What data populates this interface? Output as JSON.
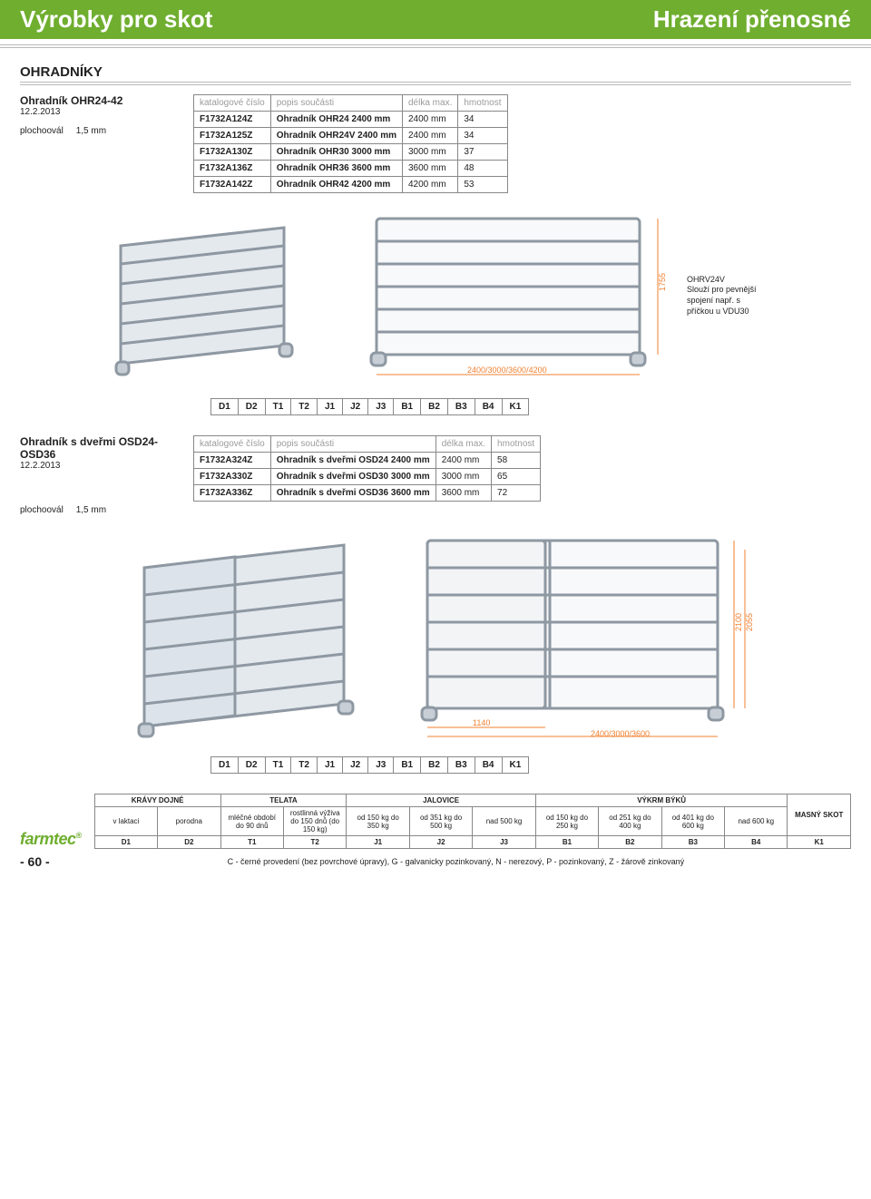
{
  "header": {
    "left": "Výrobky pro skot",
    "right": "Hrazení přenosné"
  },
  "section1": {
    "title": "OHRADNÍKY",
    "prodName": "Ohradník OHR24-42",
    "date": "12.2.2013",
    "spec": "plochoovál     1,5 mm",
    "tableHead": [
      "katalogové číslo",
      "popis součásti",
      "délka max.",
      "hmotnost"
    ],
    "rows": [
      {
        "c": "F1732A124Z",
        "p": "Ohradník OHR24 2400 mm",
        "d": "2400 mm",
        "h": "34"
      },
      {
        "c": "F1732A125Z",
        "p": "Ohradník OHR24V 2400 mm",
        "d": "2400 mm",
        "h": "34"
      },
      {
        "c": "F1732A130Z",
        "p": "Ohradník OHR30 3000 mm",
        "d": "3000 mm",
        "h": "37"
      },
      {
        "c": "F1732A136Z",
        "p": "Ohradník OHR36 3600 mm",
        "d": "3600 mm",
        "h": "48"
      },
      {
        "c": "F1732A142Z",
        "p": "Ohradník OHR42 4200 mm",
        "d": "4200 mm",
        "h": "53"
      }
    ],
    "note": "OHRV24V\nSlouží pro pevnější spojení např. s příčkou u VDU30",
    "fig1": {
      "height": "1755",
      "width": "2400/3000/3600/4200"
    },
    "codes": [
      "D1",
      "D2",
      "T1",
      "T2",
      "J1",
      "J2",
      "J3",
      "B1",
      "B2",
      "B3",
      "B4",
      "K1"
    ]
  },
  "section2": {
    "prodName": "Ohradník s dveřmi OSD24-OSD36",
    "date": "12.2.2013",
    "spec": "plochoovál     1,5 mm",
    "tableHead": [
      "katalogové číslo",
      "popis součásti",
      "délka max.",
      "hmotnost"
    ],
    "rows": [
      {
        "c": "F1732A324Z",
        "p": "Ohradník s dveřmi OSD24 2400 mm",
        "d": "2400 mm",
        "h": "58"
      },
      {
        "c": "F1732A330Z",
        "p": "Ohradník s dveřmi OSD30 3000 mm",
        "d": "3000 mm",
        "h": "65"
      },
      {
        "c": "F1732A336Z",
        "p": "Ohradník s dveřmi OSD36 3600 mm",
        "d": "3600 mm",
        "h": "72"
      }
    ],
    "fig2": {
      "height1": "2100",
      "height2": "2055",
      "doorW": "1140",
      "width": "2400/3000/3600"
    },
    "codes": [
      "D1",
      "D2",
      "T1",
      "T2",
      "J1",
      "J2",
      "J3",
      "B1",
      "B2",
      "B3",
      "B4",
      "K1"
    ]
  },
  "footer": {
    "groups": [
      "KRÁVY DOJNÉ",
      "TELATA",
      "JALOVICE",
      "VÝKRM BÝKŮ",
      "MASNÝ SKOT"
    ],
    "sub": [
      "v laktaci",
      "porodna",
      "mléčné období do 90 dnů",
      "rostlinná výživa do 150 dnů (do 150 kg)",
      "od 150 kg do 350 kg",
      "od 351 kg do 500 kg",
      "nad 500 kg",
      "od 150 kg do 250 kg",
      "od 251 kg do 400 kg",
      "od 401 kg do 600 kg",
      "nad 600 kg"
    ],
    "codes": [
      "D1",
      "D2",
      "T1",
      "T2",
      "J1",
      "J2",
      "J3",
      "B1",
      "B2",
      "B3",
      "B4",
      "K1"
    ],
    "page": "- 60 -",
    "legend": "C - černé provedení (bez povrchové úpravy), G - galvanicky pozinkovaný, N - nerezový, P - pozinkovaný, Z - žárově zinkovaný",
    "logo": "farmtec"
  },
  "colors": {
    "green": "#6fae2f",
    "orange": "#f08030",
    "steel": "#bac3cb",
    "steelDark": "#8e98a2"
  }
}
